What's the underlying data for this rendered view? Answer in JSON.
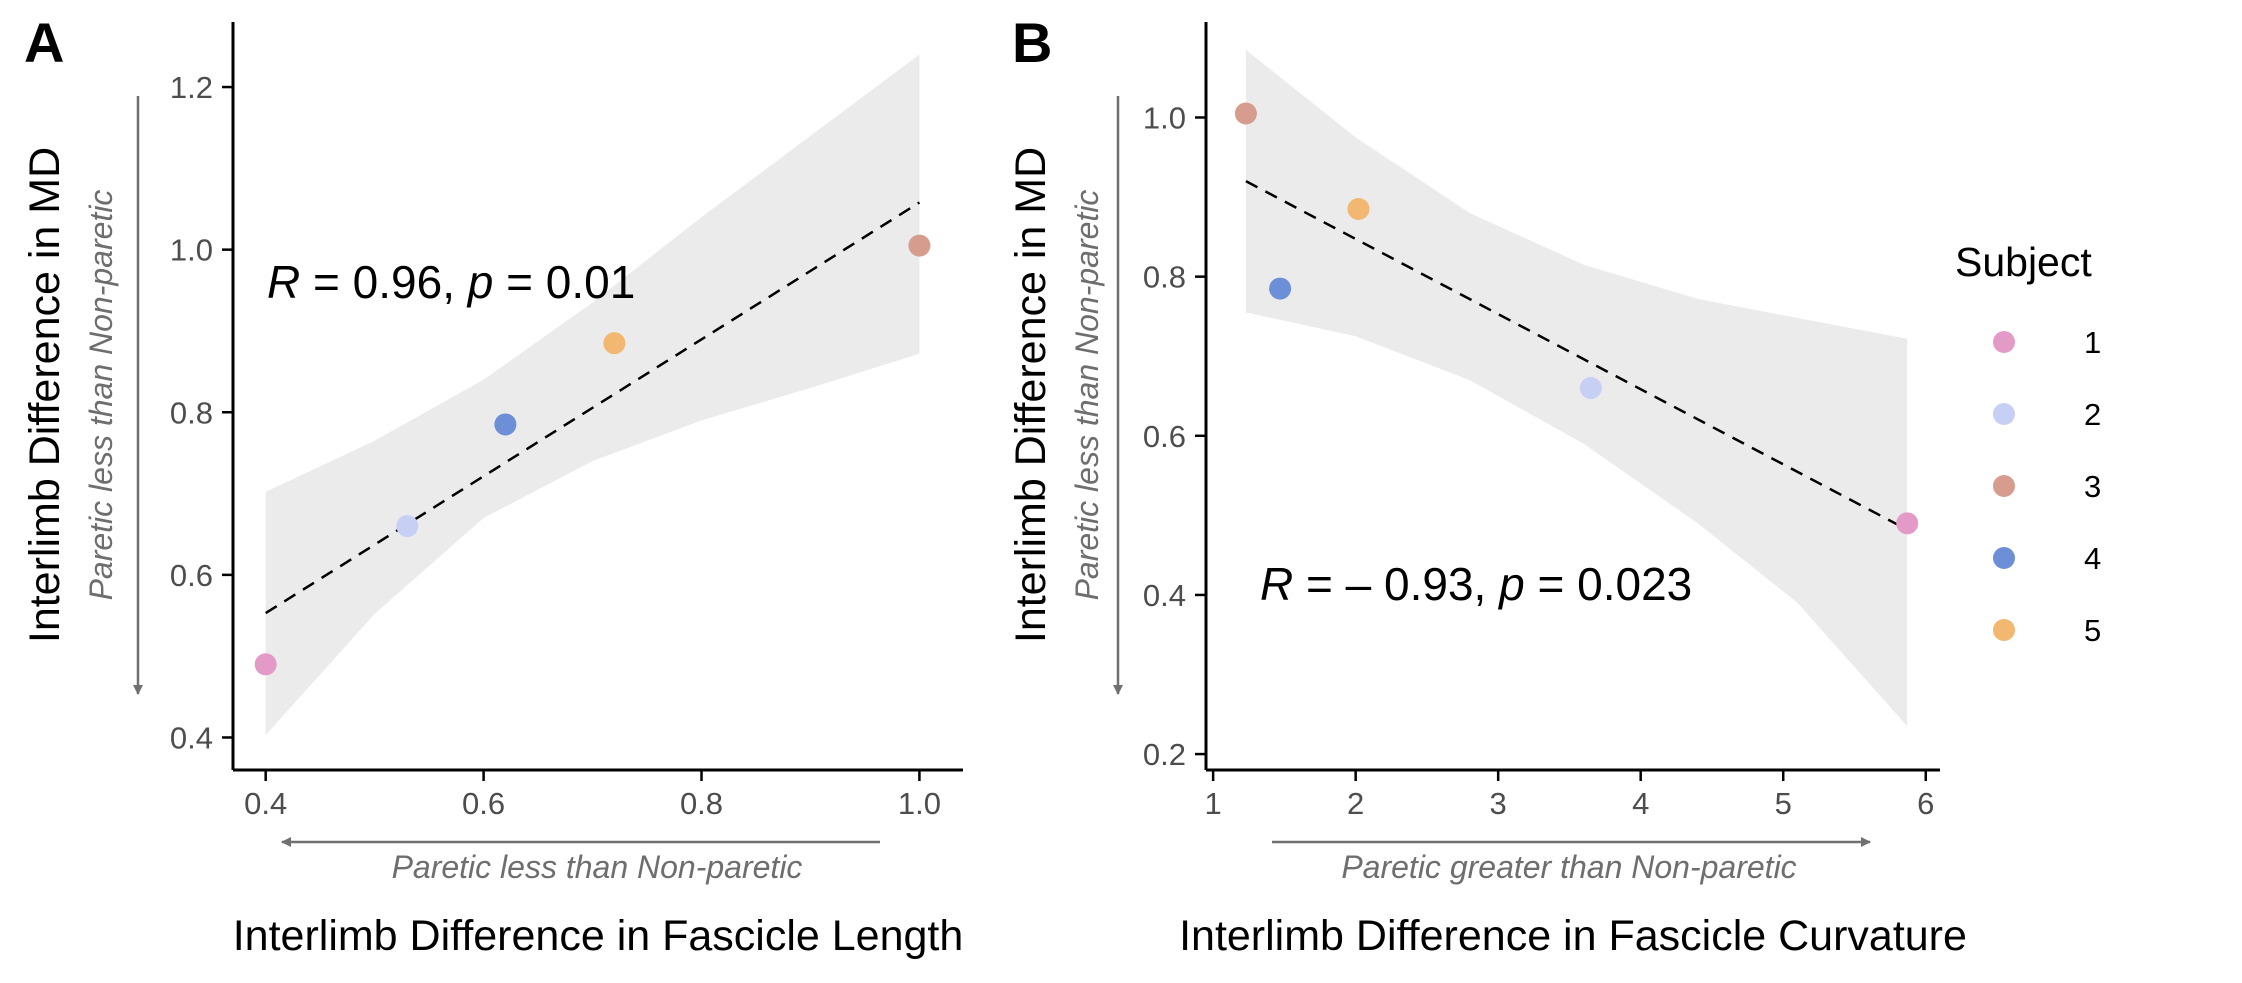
{
  "chart_data": [
    {
      "type": "scatter",
      "panel": "A",
      "xlabel": "Interlimb Difference in Fascicle Length",
      "ylabel": "Interlimb Difference in MD",
      "x_direction_label": "Paretic less than Non-paretic",
      "y_direction_label": "Paretic less than Non-paretic",
      "xlim": [
        0.37,
        1.04
      ],
      "ylim": [
        0.36,
        1.28
      ],
      "xticks": [
        0.4,
        0.6,
        0.8,
        1.0
      ],
      "xtick_labels": [
        "0.4",
        "0.6",
        "0.8",
        "1.0"
      ],
      "yticks": [
        0.4,
        0.6,
        0.8,
        1.0,
        1.2
      ],
      "ytick_labels": [
        "0.4",
        "0.6",
        "0.8",
        "1.0",
        "1.2"
      ],
      "annotation": {
        "r_symbol": "R",
        "r_text": " = 0.96, ",
        "p_symbol": "p",
        "p_text": " = 0.01"
      },
      "points": [
        {
          "subject": "1",
          "x": 0.4,
          "y": 0.49
        },
        {
          "subject": "2",
          "x": 0.53,
          "y": 0.66
        },
        {
          "subject": "3",
          "x": 1.0,
          "y": 1.005
        },
        {
          "subject": "4",
          "x": 0.62,
          "y": 0.785
        },
        {
          "subject": "5",
          "x": 0.72,
          "y": 0.885
        }
      ],
      "fit_line": {
        "x": [
          0.4,
          1.0
        ],
        "y": [
          0.553,
          1.058
        ]
      },
      "confidence_band": {
        "x": [
          0.4,
          0.5,
          0.6,
          0.7,
          0.8,
          0.9,
          1.0
        ],
        "upper": [
          0.702,
          0.765,
          0.84,
          0.935,
          1.04,
          1.14,
          1.24
        ],
        "lower": [
          0.403,
          0.552,
          0.67,
          0.74,
          0.79,
          0.83,
          0.872
        ]
      }
    },
    {
      "type": "scatter",
      "panel": "B",
      "xlabel": "Interlimb Difference in Fascicle Curvature",
      "ylabel": "Interlimb Difference in MD",
      "x_direction_label": "Paretic greater than Non-paretic",
      "y_direction_label": "Paretic less than Non-paretic",
      "xlim": [
        0.95,
        6.1
      ],
      "ylim": [
        0.18,
        1.12
      ],
      "xticks": [
        1,
        2,
        3,
        4,
        5,
        6
      ],
      "xtick_labels": [
        "1",
        "2",
        "3",
        "4",
        "5",
        "6"
      ],
      "yticks": [
        0.2,
        0.4,
        0.6,
        0.8,
        1.0
      ],
      "ytick_labels": [
        "0.2",
        "0.4",
        "0.6",
        "0.8",
        "1.0"
      ],
      "annotation": {
        "r_symbol": "R",
        "r_text": " = – 0.93, ",
        "p_symbol": "p",
        "p_text": " = 0.023"
      },
      "points": [
        {
          "subject": "1",
          "x": 5.87,
          "y": 0.49
        },
        {
          "subject": "2",
          "x": 3.65,
          "y": 0.66
        },
        {
          "subject": "3",
          "x": 1.23,
          "y": 1.005
        },
        {
          "subject": "4",
          "x": 1.47,
          "y": 0.785
        },
        {
          "subject": "5",
          "x": 2.02,
          "y": 0.885
        }
      ],
      "fit_line": {
        "x": [
          1.23,
          5.87
        ],
        "y": [
          0.92,
          0.482
        ]
      },
      "confidence_band": {
        "x": [
          1.23,
          2.0,
          2.8,
          3.6,
          4.4,
          5.1,
          5.87
        ],
        "upper": [
          1.085,
          0.975,
          0.88,
          0.815,
          0.772,
          0.748,
          0.722
        ],
        "lower": [
          0.755,
          0.725,
          0.67,
          0.59,
          0.49,
          0.39,
          0.235
        ]
      }
    }
  ],
  "legend": {
    "title": "Subject",
    "entries": [
      {
        "label": "1",
        "color": "#e39ac6"
      },
      {
        "label": "2",
        "color": "#c7cff4"
      },
      {
        "label": "3",
        "color": "#d69c8e"
      },
      {
        "label": "4",
        "color": "#6c8fd8"
      },
      {
        "label": "5",
        "color": "#f2b771"
      }
    ]
  },
  "colors": {
    "band": "#ebebeb",
    "axis": "#000000",
    "arrow": "#707070",
    "fit_line": "#000000"
  }
}
